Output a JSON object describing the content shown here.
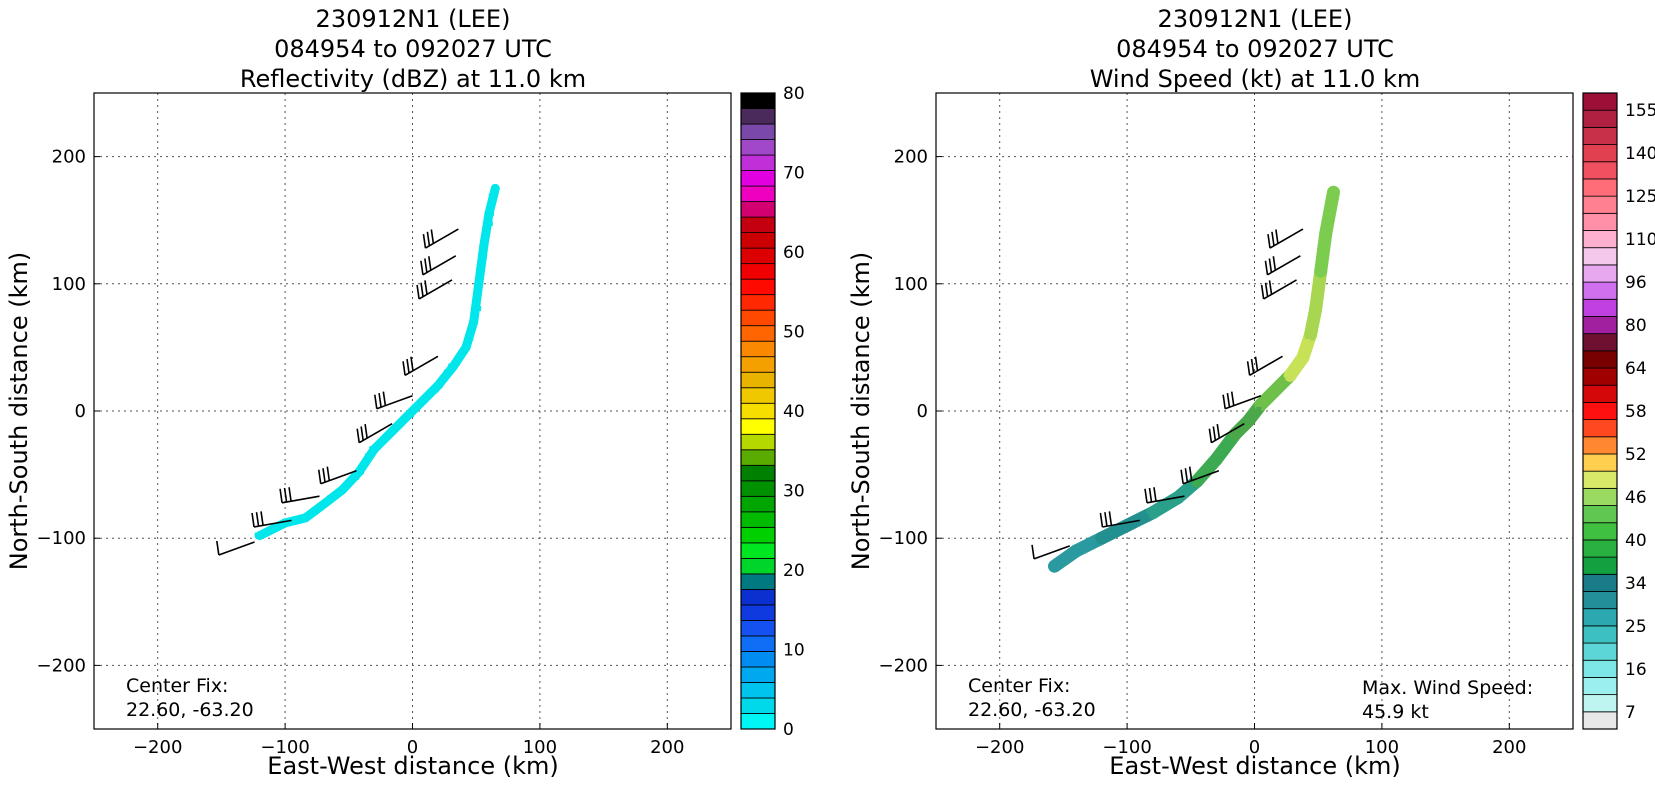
{
  "panels": [
    {
      "title_lines": [
        "230912N1 (LEE)",
        "084954 to 092027 UTC",
        "Reflectivity (dBZ) at 11.0 km"
      ],
      "xlabel": "East-West distance (km)",
      "ylabel": "North-South distance (km)",
      "center_fix_label": "Center Fix:",
      "center_fix_value": "22.60, -63.20"
    },
    {
      "title_lines": [
        "230912N1 (LEE)",
        "084954 to 092027 UTC",
        "Wind Speed (kt) at 11.0 km"
      ],
      "xlabel": "East-West distance (km)",
      "ylabel": "North-South distance (km)",
      "center_fix_label": "Center Fix:",
      "center_fix_value": "22.60, -63.20",
      "max_wind_label": "Max. Wind Speed:",
      "max_wind_value": "45.9 kt"
    }
  ],
  "chart_data": [
    {
      "type": "heatmap",
      "title": "230912N1 (LEE) 084954 to 092027 UTC Reflectivity (dBZ) at 11.0 km",
      "xlabel": "East-West distance (km)",
      "ylabel": "North-South distance (km)",
      "xlim": [
        -250,
        250
      ],
      "ylim": [
        -250,
        250
      ],
      "xticks": [
        -200,
        -100,
        0,
        100,
        200
      ],
      "yticks": [
        -200,
        -100,
        0,
        100,
        200
      ],
      "grid": true,
      "colorbar": {
        "label_ticks": [
          0,
          10,
          20,
          30,
          40,
          50,
          60,
          70,
          80
        ],
        "min": 0,
        "max": 80,
        "colors": [
          "#00f5f5",
          "#00d9ea",
          "#00c3ee",
          "#00a8f0",
          "#008cf0",
          "#0f6ef5",
          "#1550f0",
          "#0f3ae0",
          "#0a30d0",
          "#007a80",
          "#00d52a",
          "#00e620",
          "#00d000",
          "#00bb00",
          "#00a500",
          "#009000",
          "#008000",
          "#5aad00",
          "#b4d800",
          "#ffff00",
          "#f5de00",
          "#f0c800",
          "#e8b400",
          "#f4a000",
          "#fa8800",
          "#ff6600",
          "#ff4800",
          "#ff2800",
          "#ff0a00",
          "#f00000",
          "#dc0000",
          "#cc0000",
          "#c40010",
          "#d20070",
          "#ef00c0",
          "#e000e0",
          "#c030d8",
          "#a048c8",
          "#7a48a8",
          "#4a2a5a",
          "#000000"
        ]
      },
      "series": [
        {
          "name": "",
          "type": "region",
          "color": "#00e6ea",
          "points": [
            [
              -120,
              -98
            ],
            [
              -100,
              -88
            ],
            [
              -84,
              -84
            ],
            [
              -68,
              -72
            ],
            [
              -55,
              -62
            ],
            [
              -42,
              -48
            ],
            [
              -30,
              -30
            ],
            [
              -15,
              -15
            ],
            [
              -5,
              -5
            ],
            [
              0,
              0
            ],
            [
              8,
              8
            ],
            [
              20,
              20
            ],
            [
              32,
              35
            ],
            [
              42,
              50
            ],
            [
              48,
              70
            ],
            [
              52,
              100
            ],
            [
              56,
              130
            ],
            [
              60,
              155
            ],
            [
              65,
              175
            ]
          ]
        }
      ],
      "wind_barbs": [
        {
          "x": -124,
          "y": -103,
          "dir": 290,
          "barbs": 1
        },
        {
          "x": -95,
          "y": -86,
          "dir": 280,
          "barbs": 3
        },
        {
          "x": -73,
          "y": -67,
          "dir": 280,
          "barbs": 3
        },
        {
          "x": -44,
          "y": -47,
          "dir": 290,
          "barbs": 3
        },
        {
          "x": -16,
          "y": -10,
          "dir": 300,
          "barbs": 3
        },
        {
          "x": 0,
          "y": 12,
          "dir": 290,
          "barbs": 3
        },
        {
          "x": 20,
          "y": 43,
          "dir": 300,
          "barbs": 3
        },
        {
          "x": 31,
          "y": 103,
          "dir": 300,
          "barbs": 3
        },
        {
          "x": 34,
          "y": 122,
          "dir": 300,
          "barbs": 3
        },
        {
          "x": 36,
          "y": 143,
          "dir": 300,
          "barbs": 3
        }
      ],
      "annotations": [
        "Center Fix:",
        "22.60, -63.20"
      ]
    },
    {
      "type": "heatmap",
      "title": "230912N1 (LEE) 084954 to 092027 UTC Wind Speed (kt) at 11.0 km",
      "xlabel": "East-West distance (km)",
      "ylabel": "North-South distance (km)",
      "xlim": [
        -250,
        250
      ],
      "ylim": [
        -250,
        250
      ],
      "xticks": [
        -200,
        -100,
        0,
        100,
        200
      ],
      "yticks": [
        -200,
        -100,
        0,
        100,
        200
      ],
      "grid": true,
      "colorbar": {
        "label_ticks": [
          7,
          16,
          25,
          34,
          40,
          46,
          52,
          58,
          64,
          80,
          96,
          110,
          125,
          140,
          155
        ],
        "colors": [
          "#e8e8e8",
          "#bff5f0",
          "#9cefef",
          "#7de6e6",
          "#5cd6d6",
          "#3cc0c0",
          "#2ba8b0",
          "#239098",
          "#1a7c88",
          "#12a040",
          "#28b040",
          "#40c040",
          "#60c850",
          "#9ada60",
          "#d8e868",
          "#ffd050",
          "#ff8830",
          "#ff4820",
          "#ff1010",
          "#d40808",
          "#a00000",
          "#780000",
          "#701030",
          "#a020a0",
          "#c040e0",
          "#d070ee",
          "#e8a8f0",
          "#f4c8ec",
          "#ffb0d0",
          "#ff90a8",
          "#ff8090",
          "#ff6e78",
          "#f05060",
          "#e04050",
          "#c83048",
          "#b02040",
          "#9c1038"
        ]
      },
      "series": [
        {
          "name": "",
          "type": "region",
          "colors_along": [
            "#2a9aa0",
            "#22908f",
            "#2aa08a",
            "#3caa50",
            "#4aa84a",
            "#6ec04a",
            "#c8e258",
            "#a8d650",
            "#7ccc50"
          ],
          "points": [
            [
              -157,
              -122
            ],
            [
              -140,
              -110
            ],
            [
              -120,
              -100
            ],
            [
              -100,
              -90
            ],
            [
              -80,
              -80
            ],
            [
              -60,
              -68
            ],
            [
              -45,
              -55
            ],
            [
              -30,
              -38
            ],
            [
              -15,
              -18
            ],
            [
              -5,
              -8
            ],
            [
              5,
              5
            ],
            [
              15,
              15
            ],
            [
              28,
              28
            ],
            [
              38,
              42
            ],
            [
              44,
              60
            ],
            [
              48,
              80
            ],
            [
              52,
              110
            ],
            [
              56,
              140
            ],
            [
              62,
              172
            ]
          ]
        }
      ],
      "wind_barbs": [
        {
          "x": -145,
          "y": -106,
          "dir": 290,
          "barbs": 1
        },
        {
          "x": -90,
          "y": -86,
          "dir": 280,
          "barbs": 3
        },
        {
          "x": -55,
          "y": -67,
          "dir": 280,
          "barbs": 3
        },
        {
          "x": -28,
          "y": -47,
          "dir": 290,
          "barbs": 3
        },
        {
          "x": -8,
          "y": -10,
          "dir": 300,
          "barbs": 3
        },
        {
          "x": 5,
          "y": 12,
          "dir": 290,
          "barbs": 3
        },
        {
          "x": 22,
          "y": 43,
          "dir": 300,
          "barbs": 3
        },
        {
          "x": 33,
          "y": 103,
          "dir": 300,
          "barbs": 3
        },
        {
          "x": 36,
          "y": 122,
          "dir": 300,
          "barbs": 3
        },
        {
          "x": 38,
          "y": 143,
          "dir": 300,
          "barbs": 3
        }
      ],
      "annotations": [
        "Center Fix:",
        "22.60, -63.20",
        "Max. Wind Speed:",
        "45.9 kt"
      ]
    }
  ]
}
